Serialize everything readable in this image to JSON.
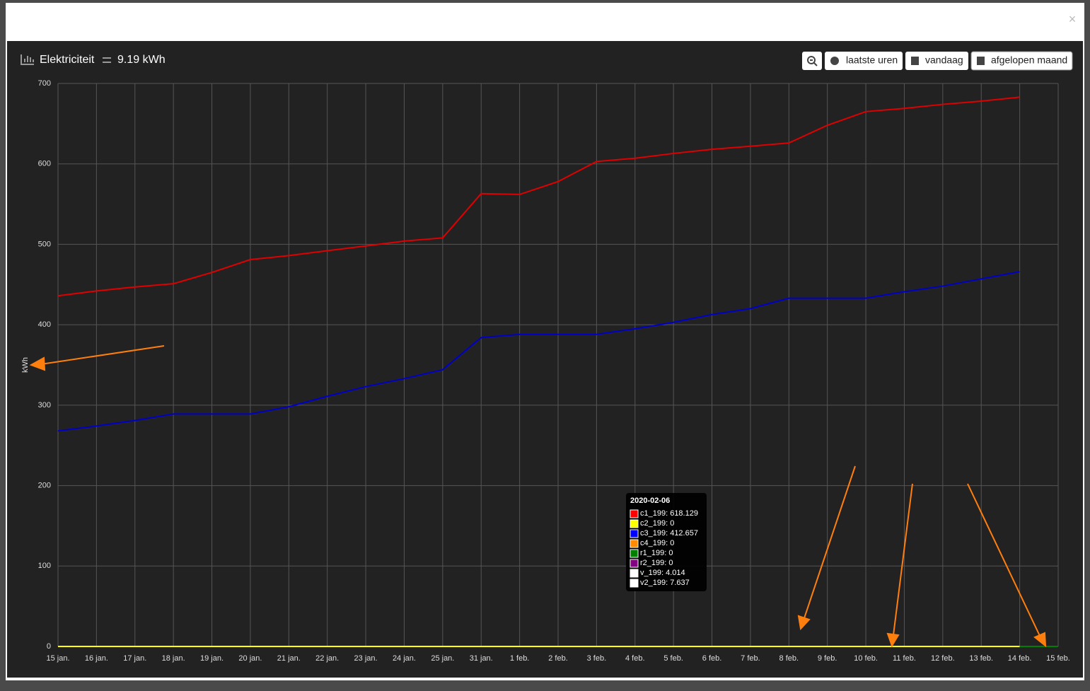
{
  "header": {
    "title": "Elektriciteit",
    "total": "9.19 kWh"
  },
  "close": "×",
  "buttons": [
    "laatste uren",
    "vandaag",
    "afgelopen maand"
  ],
  "chart_data": {
    "type": "line",
    "y_label": "kWh",
    "categories": [
      "15 jan.",
      "16 jan.",
      "17 jan.",
      "18 jan.",
      "19 jan.",
      "20 jan.",
      "21 jan.",
      "22 jan.",
      "23 jan.",
      "24 jan.",
      "25 jan.",
      "31 jan.",
      "1 feb.",
      "2 feb.",
      "3 feb.",
      "4 feb.",
      "5 feb.",
      "6 feb.",
      "7 feb.",
      "8 feb.",
      "9 feb.",
      "10 feb.",
      "11 feb.",
      "12 feb.",
      "13 feb.",
      "14 feb.",
      "15 feb."
    ],
    "ylim": [
      0,
      700
    ],
    "yticks": [
      0,
      100,
      200,
      300,
      400,
      500,
      600,
      700
    ],
    "grid": true,
    "series": [
      {
        "name": "c1_199",
        "color": "#e00000",
        "values": [
          436,
          442,
          447,
          451,
          465,
          481,
          486,
          492,
          498,
          504,
          508,
          563,
          562,
          578,
          603,
          607,
          613,
          618.129,
          622,
          626,
          648,
          665,
          669,
          674,
          678,
          683,
          null
        ]
      },
      {
        "name": "c2_199",
        "color": "#ffff00",
        "values": [
          0,
          0,
          0,
          0,
          0,
          0,
          0,
          0,
          0,
          0,
          0,
          0,
          0,
          0,
          0,
          0,
          0,
          0,
          0,
          0,
          0,
          0,
          0,
          0,
          0,
          0,
          null
        ]
      },
      {
        "name": "c3_199",
        "color": "#0000c8",
        "values": [
          268,
          274,
          281,
          289,
          289,
          289,
          298,
          311,
          323,
          333,
          344,
          384,
          388,
          388,
          388,
          395,
          403,
          412.657,
          420,
          433,
          433,
          433,
          441,
          448,
          457,
          466,
          null
        ]
      },
      {
        "name": "r1_199",
        "color": "#008000",
        "values": [
          null,
          null,
          null,
          null,
          null,
          null,
          null,
          null,
          null,
          null,
          null,
          null,
          null,
          null,
          null,
          null,
          null,
          null,
          null,
          null,
          null,
          null,
          null,
          null,
          null,
          0,
          0
        ]
      }
    ],
    "tooltip": {
      "title": "2020-02-06",
      "items": [
        {
          "label": "c1_199: 618.129",
          "color": "#ff0000"
        },
        {
          "label": "c2_199: 0",
          "color": "#ffff00"
        },
        {
          "label": "c3_199: 412.657",
          "color": "#0000ff"
        },
        {
          "label": "c4_199: 0",
          "color": "#ff8c00"
        },
        {
          "label": "r1_199: 0",
          "color": "#008000"
        },
        {
          "label": "r2_199: 0",
          "color": "#800080"
        },
        {
          "label": "v_199: 4.014",
          "color": "#ffffff"
        },
        {
          "label": "v2_199: 7.637",
          "color": "#ffffff"
        }
      ]
    }
  }
}
